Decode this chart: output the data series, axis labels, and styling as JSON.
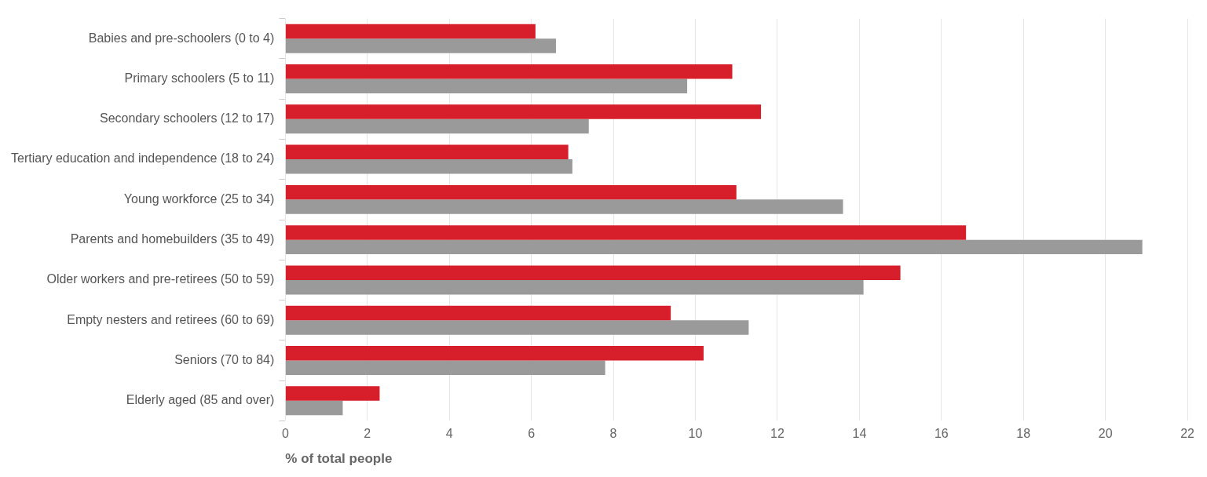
{
  "chart_data": {
    "type": "bar",
    "orientation": "horizontal",
    "xlabel": "% of total people",
    "categories": [
      "Babies and pre-schoolers (0 to 4)",
      "Primary schoolers (5 to 11)",
      "Secondary schoolers (12 to 17)",
      "Tertiary education and independence (18 to 24)",
      "Young workforce (25 to 34)",
      "Parents and homebuilders (35 to 49)",
      "Older workers and pre-retirees (50 to 59)",
      "Empty nesters and retirees (60 to 69)",
      "Seniors (70 to 84)",
      "Elderly aged (85 and over)"
    ],
    "series": [
      {
        "color": "#d71f2b",
        "values": [
          6.1,
          10.9,
          11.6,
          6.9,
          11.0,
          16.6,
          15.0,
          9.4,
          10.2,
          2.3
        ]
      },
      {
        "color": "#9a9a9a",
        "values": [
          6.6,
          9.8,
          7.4,
          7.0,
          13.6,
          20.9,
          14.1,
          11.3,
          7.8,
          1.4
        ]
      }
    ],
    "xlim": [
      0,
      22
    ],
    "xticks": [
      0,
      2,
      4,
      6,
      8,
      10,
      12,
      14,
      16,
      18,
      20,
      22
    ],
    "grid": "x",
    "legend": false
  }
}
